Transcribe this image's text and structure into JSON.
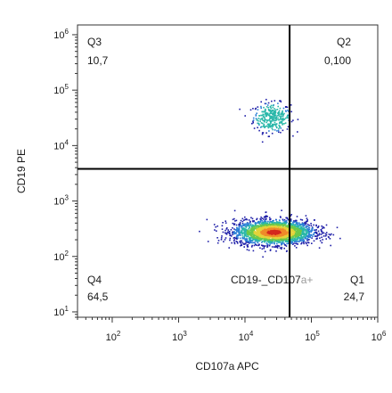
{
  "chart_data": {
    "type": "scatter",
    "subtype": "flow-cytometry quadrant density plot",
    "xlabel": "CD107a APC",
    "ylabel": "CD19 PE",
    "x_scale": "log",
    "y_scale": "log",
    "xlim": [
      30,
      1000000
    ],
    "ylim": [
      8,
      1500000
    ],
    "x_ticks": [
      {
        "base": "10",
        "exp": "2",
        "value": 100
      },
      {
        "base": "10",
        "exp": "3",
        "value": 1000
      },
      {
        "base": "10",
        "exp": "4",
        "value": 10000
      },
      {
        "base": "10",
        "exp": "5",
        "value": 100000
      },
      {
        "base": "10",
        "exp": "6",
        "value": 1000000
      }
    ],
    "y_ticks": [
      {
        "base": "10",
        "exp": "1",
        "value": 10
      },
      {
        "base": "10",
        "exp": "2",
        "value": 100
      },
      {
        "base": "10",
        "exp": "3",
        "value": 1000
      },
      {
        "base": "10",
        "exp": "4",
        "value": 10000
      },
      {
        "base": "10",
        "exp": "5",
        "value": 100000
      },
      {
        "base": "10",
        "exp": "6",
        "value": 1000000
      }
    ],
    "gates": {
      "x": 47000,
      "y": 3800
    },
    "quadrants": [
      {
        "id": "Q3",
        "label": "Q3",
        "value": "10,7",
        "position": "top-left"
      },
      {
        "id": "Q2",
        "label": "Q2",
        "value": "0,100",
        "position": "top-right"
      },
      {
        "id": "Q4",
        "label": "Q4",
        "value": "64,5",
        "position": "bottom-left"
      },
      {
        "id": "Q1",
        "label": "Q1",
        "value": "24,7",
        "position": "bottom-right"
      }
    ],
    "annotation": {
      "dark": "CD19-_CD107",
      "light": "a+"
    },
    "populations": [
      {
        "center_x": 25000,
        "center_y": 33000,
        "spread_x": 0.14,
        "spread_y": 0.13,
        "events": 320
      },
      {
        "center_x": 27000,
        "center_y": 280,
        "spread_x": 0.3,
        "spread_y": 0.11,
        "events": 2600
      }
    ],
    "density_colors": [
      "#1f1fa8",
      "#2a7fd6",
      "#29b7a9",
      "#6cc94a",
      "#e3d33a",
      "#ef8a2a",
      "#d42a1e"
    ]
  }
}
